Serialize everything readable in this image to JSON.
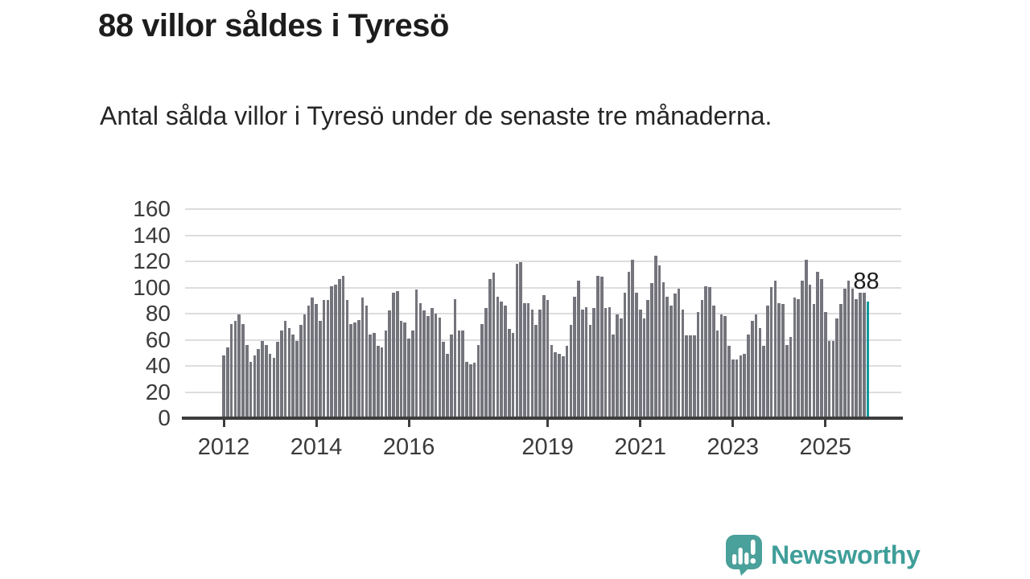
{
  "header": {
    "title": "88 villor såldes i Tyresö",
    "subtitle": "Antal sålda villor i Tyresö under de senaste tre månaderna."
  },
  "chart_data": {
    "type": "bar",
    "title": "88 villor såldes i Tyresö",
    "subtitle": "Antal sålda villor i Tyresö under de senaste tre månaderna.",
    "xlabel": "",
    "ylabel": "",
    "x_unit": "month",
    "start_month": "2012-01",
    "end_month": "2025-12",
    "n_points": 168,
    "ylim": [
      0,
      160
    ],
    "y_ticks": [
      0,
      20,
      40,
      60,
      80,
      100,
      120,
      140,
      160
    ],
    "x_tick_years": [
      2012,
      2014,
      2016,
      2019,
      2021,
      2023,
      2025
    ],
    "x_tick_labels": [
      "2012",
      "2014",
      "2016",
      "2019",
      "2021",
      "2023",
      "2025"
    ],
    "grid": "horizontal",
    "legend": "none",
    "bar_color": "#74747c",
    "highlight_color": "#109b9d",
    "highlight_index": 167,
    "annotation": {
      "text": "88",
      "value": 88
    },
    "values": [
      47,
      53,
      71,
      73,
      78,
      71,
      55,
      42,
      47,
      52,
      58,
      55,
      48,
      45,
      57,
      66,
      73,
      68,
      63,
      58,
      70,
      78,
      85,
      91,
      86,
      73,
      89,
      89,
      100,
      101,
      105,
      108,
      89,
      71,
      72,
      74,
      91,
      85,
      63,
      64,
      54,
      53,
      66,
      81,
      95,
      96,
      73,
      72,
      60,
      66,
      97,
      87,
      81,
      77,
      83,
      79,
      76,
      57,
      48,
      63,
      90,
      66,
      66,
      42,
      40,
      41,
      55,
      71,
      83,
      105,
      110,
      92,
      88,
      85,
      67,
      64,
      117,
      118,
      87,
      87,
      82,
      70,
      82,
      93,
      89,
      55,
      49,
      48,
      46,
      54,
      70,
      92,
      104,
      82,
      84,
      70,
      83,
      108,
      107,
      83,
      84,
      63,
      78,
      75,
      95,
      111,
      120,
      95,
      82,
      75,
      89,
      102,
      123,
      116,
      103,
      92,
      85,
      94,
      98,
      82,
      62,
      62,
      62,
      80,
      89,
      100,
      99,
      85,
      66,
      78,
      77,
      54,
      44,
      44,
      47,
      48,
      63,
      73,
      78,
      68,
      54,
      85,
      99,
      104,
      87,
      86,
      55,
      61,
      91,
      90,
      104,
      120,
      101,
      86,
      111,
      105,
      80,
      58,
      58,
      75,
      86,
      98,
      104,
      98,
      90,
      95,
      95,
      88
    ]
  },
  "footer": {
    "brand": "Newsworthy",
    "brand_color": "#3f9e99",
    "badge_color": "#4aa09a"
  }
}
